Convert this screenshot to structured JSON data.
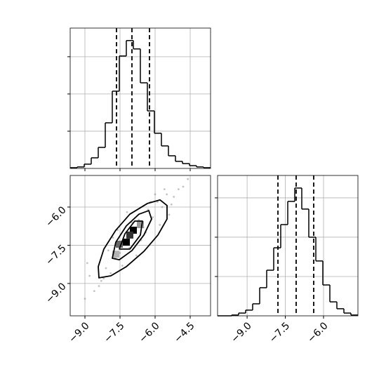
{
  "chart_data": [
    {
      "type": "histogram",
      "xlim": [
        -9.63,
        -3.63
      ],
      "ylim": [
        0,
        754
      ],
      "grid": true,
      "xticks": [
        {
          "value": -9,
          "label": "−9.0"
        },
        {
          "value": -7.5,
          "label": "−7.5"
        },
        {
          "value": -6,
          "label": "−6.0"
        },
        {
          "value": -4.5,
          "label": "−4.5"
        }
      ],
      "yticks": [
        200,
        400,
        600
      ],
      "show_xtick_labels": false,
      "show_ytick_labels": false,
      "bins": [
        -9.63,
        -9.33,
        -9.03,
        -8.73,
        -8.43,
        -8.13,
        -7.83,
        -7.53,
        -7.23,
        -6.93,
        -6.63,
        -6.33,
        -6.03,
        -5.73,
        -5.43,
        -5.13,
        -4.83,
        -4.53,
        -4.23,
        -3.93,
        -3.63
      ],
      "values": [
        4,
        8,
        23,
        57,
        113,
        245,
        415,
        604,
        687,
        642,
        460,
        309,
        189,
        121,
        68,
        38,
        26,
        15,
        8,
        4
      ],
      "color": "#000000",
      "quantiles": [
        -7.65,
        -6.99,
        -6.24
      ]
    },
    {
      "type": "scatter",
      "xlim": [
        -9.63,
        -3.63
      ],
      "ylim": [
        -10.27,
        -4.76
      ],
      "grid": true,
      "xticks": [
        {
          "value": -9,
          "label": "−9.0"
        },
        {
          "value": -7.5,
          "label": "−7.5"
        },
        {
          "value": -6,
          "label": "−6.0"
        },
        {
          "value": -4.5,
          "label": "−4.5"
        }
      ],
      "yticks": [
        {
          "value": -9,
          "label": "−9.0"
        },
        {
          "value": -7.5,
          "label": "−7.5"
        },
        {
          "value": -6,
          "label": "−6.0"
        }
      ],
      "show_xtick_labels": true,
      "show_ytick_labels": true,
      "color": "#888888",
      "x": [
        -8.6,
        -8.3,
        -8.1,
        -7.9,
        -7.7,
        -7.5,
        -7.3,
        -7.1,
        -6.9,
        -6.7,
        -6.5,
        -6.3,
        -6.1,
        -5.9,
        -5.7,
        -5.5,
        -5.3,
        -5.0,
        -4.8,
        -9.0,
        -8.8,
        -8.4,
        -8.0,
        -7.8,
        -7.4,
        -7.0,
        -6.6,
        -6.2,
        -5.8,
        -5.4,
        -8.9,
        -7.6,
        -6.8,
        -6.0,
        -5.2,
        -8.2,
        -7.2,
        -6.4,
        -5.6,
        -4.6
      ],
      "y": [
        -9.3,
        -8.9,
        -8.4,
        -8.6,
        -8.0,
        -7.8,
        -7.3,
        -7.6,
        -6.9,
        -6.5,
        -6.8,
        -6.1,
        -6.4,
        -5.8,
        -6.0,
        -5.5,
        -5.9,
        -5.3,
        -5.2,
        -9.6,
        -8.7,
        -9.1,
        -7.7,
        -7.2,
        -8.3,
        -6.6,
        -7.3,
        -5.8,
        -6.7,
        -6.3,
        -8.2,
        -6.9,
        -7.9,
        -5.5,
        -5.6,
        -8.8,
        -6.2,
        -7.0,
        -5.3,
        -4.9
      ],
      "density": {
        "x": [
          -7.23,
          -6.93,
          -7.53,
          -7.08,
          -7.68,
          -6.63
        ],
        "y": [
          -7.38,
          -6.91,
          -7.46,
          -7.1,
          -7.85,
          -6.69
        ],
        "v": [
          1,
          1,
          0.6,
          0.8,
          0.3,
          0.4
        ],
        "dx": 0.3,
        "dy": 0.275
      },
      "contours": [
        {
          "x": [
            -8.4,
            -8.43,
            -8.19,
            -7.68,
            -7.08,
            -6.33,
            -5.79,
            -5.49,
            -5.49,
            -5.88,
            -6.48,
            -7.23,
            -7.89
          ],
          "y": [
            -8.78,
            -8.34,
            -7.65,
            -6.91,
            -6.28,
            -5.86,
            -5.72,
            -5.94,
            -6.47,
            -7.1,
            -7.74,
            -8.34,
            -8.7
          ]
        },
        {
          "x": [
            -7.83,
            -7.68,
            -7.23,
            -6.69,
            -6.27,
            -6.15,
            -6.48,
            -6.99,
            -7.53
          ],
          "y": [
            -8.01,
            -7.38,
            -6.74,
            -6.28,
            -6.14,
            -6.47,
            -7.1,
            -7.71,
            -8.07
          ]
        },
        {
          "x": [
            -7.53,
            -7.29,
            -6.87,
            -6.54,
            -6.63,
            -7.08
          ],
          "y": [
            -7.65,
            -7.05,
            -6.55,
            -6.55,
            -7.1,
            -7.65
          ]
        }
      ]
    },
    {
      "type": "histogram",
      "xlim": [
        -10.16,
        -4.65
      ],
      "ylim": [
        0,
        714
      ],
      "grid": true,
      "xticks": [
        {
          "value": -9,
          "label": "−9.0"
        },
        {
          "value": -7.5,
          "label": "−7.5"
        },
        {
          "value": -6,
          "label": "−6.0"
        }
      ],
      "yticks": [
        200,
        400,
        600
      ],
      "show_xtick_labels": true,
      "show_ytick_labels": false,
      "bins": [
        -10.16,
        -9.885,
        -9.609,
        -9.334,
        -9.058,
        -8.783,
        -8.507,
        -8.232,
        -7.956,
        -7.681,
        -7.405,
        -7.13,
        -6.854,
        -6.579,
        -6.303,
        -6.028,
        -5.752,
        -5.477,
        -5.201,
        -4.926,
        -4.65
      ],
      "values": [
        0,
        0,
        4,
        14,
        29,
        61,
        143,
        232,
        346,
        464,
        582,
        650,
        543,
        400,
        279,
        157,
        71,
        36,
        14,
        4
      ],
      "color": "#000000",
      "quantiles": [
        -7.79,
        -7.075,
        -6.386
      ]
    }
  ]
}
